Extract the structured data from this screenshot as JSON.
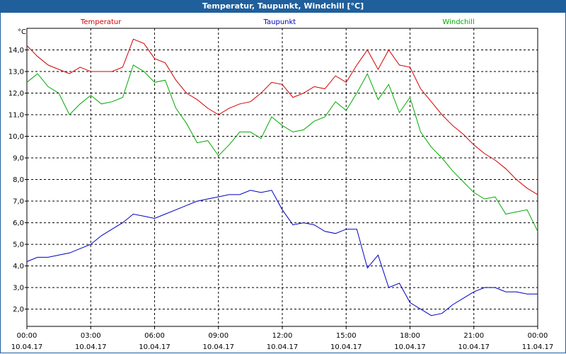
{
  "window": {
    "title": "Temperatur, Taupunkt, Windchill [°C]"
  },
  "chart_data": {
    "type": "line",
    "title": "Temperatur, Taupunkt, Windchill [°C]",
    "ylabel": "°C",
    "xlabel": "",
    "ylim": [
      1.2,
      15.0
    ],
    "xlim": [
      0,
      24
    ],
    "grid": true,
    "yticks": [
      {
        "v": 2.0,
        "label": "2,0"
      },
      {
        "v": 3.0,
        "label": "3,0"
      },
      {
        "v": 4.0,
        "label": "4,0"
      },
      {
        "v": 5.0,
        "label": "5,0"
      },
      {
        "v": 6.0,
        "label": "6,0"
      },
      {
        "v": 7.0,
        "label": "7,0"
      },
      {
        "v": 8.0,
        "label": "8,0"
      },
      {
        "v": 9.0,
        "label": "9,0"
      },
      {
        "v": 10.0,
        "label": "10,0"
      },
      {
        "v": 11.0,
        "label": "11,0"
      },
      {
        "v": 12.0,
        "label": "12,0"
      },
      {
        "v": 13.0,
        "label": "13,0"
      },
      {
        "v": 14.0,
        "label": "14,0"
      }
    ],
    "xticks": [
      {
        "v": 0,
        "time": "00:00",
        "date": "10.04.17"
      },
      {
        "v": 3,
        "time": "03:00",
        "date": "10.04.17"
      },
      {
        "v": 6,
        "time": "06:00",
        "date": "10.04.17"
      },
      {
        "v": 9,
        "time": "09:00",
        "date": "10.04.17"
      },
      {
        "v": 12,
        "time": "12:00",
        "date": "10.04.17"
      },
      {
        "v": 15,
        "time": "15:00",
        "date": "10.04.17"
      },
      {
        "v": 18,
        "time": "18:00",
        "date": "10.04.17"
      },
      {
        "v": 21,
        "time": "21:00",
        "date": "10.04.17"
      },
      {
        "v": 24,
        "time": "00:00",
        "date": "11.04.17"
      }
    ],
    "series": [
      {
        "name": "Temperatur",
        "color": "#d40000",
        "x": [
          0,
          0.5,
          1,
          1.5,
          2,
          2.5,
          3,
          3.5,
          4,
          4.5,
          5,
          5.5,
          6,
          6.5,
          7,
          7.5,
          8,
          8.5,
          9,
          9.5,
          10,
          10.5,
          11,
          11.5,
          12,
          12.5,
          13,
          13.5,
          14,
          14.5,
          15,
          15.5,
          16,
          16.5,
          17,
          17.5,
          18,
          18.5,
          19,
          19.5,
          20,
          20.5,
          21,
          21.5,
          22,
          22.5,
          23,
          23.5,
          24
        ],
        "values": [
          14.2,
          13.7,
          13.3,
          13.1,
          12.9,
          13.2,
          13.0,
          13.0,
          13.0,
          13.2,
          14.5,
          14.3,
          13.6,
          13.4,
          12.6,
          12.0,
          11.7,
          11.3,
          11.0,
          11.3,
          11.5,
          11.6,
          12.0,
          12.5,
          12.4,
          11.8,
          12.0,
          12.3,
          12.2,
          12.8,
          12.5,
          13.3,
          14.0,
          13.1,
          14.0,
          13.3,
          13.2,
          12.2,
          11.6,
          11.0,
          10.5,
          10.1,
          9.6,
          9.2,
          8.9,
          8.5,
          8.0,
          7.6,
          7.3
        ]
      },
      {
        "name": "Taupunkt",
        "color": "#0000c0",
        "x": [
          0,
          0.5,
          1,
          1.5,
          2,
          2.5,
          3,
          3.5,
          4,
          4.5,
          5,
          5.5,
          6,
          6.5,
          7,
          7.5,
          8,
          8.5,
          9,
          9.5,
          10,
          10.5,
          11,
          11.5,
          12,
          12.5,
          13,
          13.5,
          14,
          14.5,
          15,
          15.5,
          16,
          16.5,
          17,
          17.5,
          18,
          18.5,
          19,
          19.5,
          20,
          20.5,
          21,
          21.5,
          22,
          22.5,
          23,
          23.5,
          24
        ],
        "values": [
          4.2,
          4.4,
          4.4,
          4.5,
          4.6,
          4.8,
          5.0,
          5.4,
          5.7,
          6.0,
          6.4,
          6.3,
          6.2,
          6.4,
          6.6,
          6.8,
          7.0,
          7.1,
          7.2,
          7.3,
          7.3,
          7.5,
          7.4,
          7.5,
          6.6,
          5.9,
          6.0,
          5.9,
          5.6,
          5.5,
          5.7,
          5.7,
          3.9,
          4.5,
          3.0,
          3.2,
          2.3,
          2.0,
          1.7,
          1.8,
          2.2,
          2.5,
          2.8,
          3.0,
          3.0,
          2.8,
          2.8,
          2.7,
          2.7
        ]
      },
      {
        "name": "Windchill",
        "color": "#00aa00",
        "x": [
          0,
          0.5,
          1,
          1.5,
          2,
          2.5,
          3,
          3.5,
          4,
          4.5,
          5,
          5.5,
          6,
          6.5,
          7,
          7.5,
          8,
          8.5,
          9,
          9.5,
          10,
          10.5,
          11,
          11.5,
          12,
          12.5,
          13,
          13.5,
          14,
          14.5,
          15,
          15.5,
          16,
          16.5,
          17,
          17.5,
          18,
          18.5,
          19,
          19.5,
          20,
          20.5,
          21,
          21.5,
          22,
          22.5,
          23,
          23.5,
          24
        ],
        "values": [
          12.5,
          12.9,
          12.3,
          12.0,
          11.0,
          11.5,
          11.9,
          11.5,
          11.6,
          11.8,
          13.3,
          13.0,
          12.5,
          12.6,
          11.3,
          10.6,
          9.7,
          9.8,
          9.1,
          9.6,
          10.2,
          10.2,
          9.9,
          10.9,
          10.5,
          10.2,
          10.3,
          10.7,
          10.9,
          11.6,
          11.2,
          12.0,
          12.9,
          11.7,
          12.4,
          11.1,
          11.8,
          10.2,
          9.5,
          9.0,
          8.4,
          7.9,
          7.4,
          7.1,
          7.2,
          6.4,
          6.5,
          6.6,
          5.6
        ]
      }
    ]
  }
}
